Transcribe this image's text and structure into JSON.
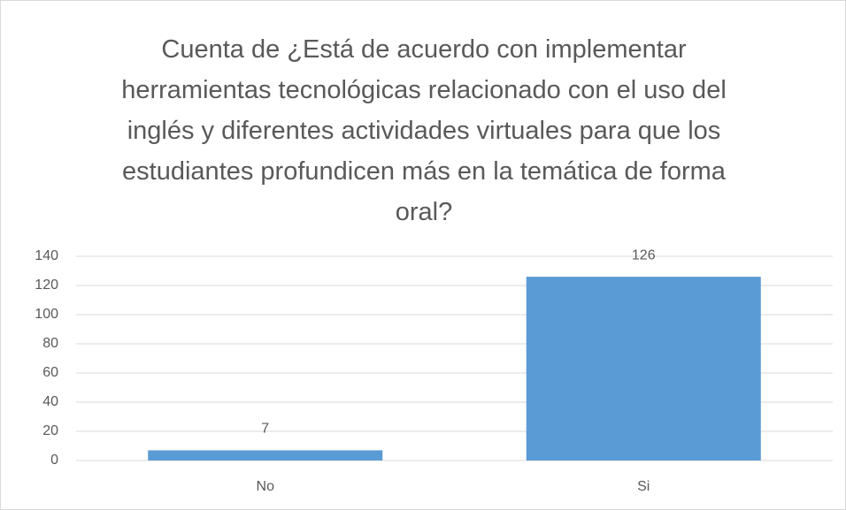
{
  "chart_data": {
    "type": "bar",
    "title": "Cuenta de ¿Está de acuerdo con implementar herramientas tecnológicas relacionado con el uso del inglés y diferentes actividades virtuales para que los estudiantes profundicen más en la temática de forma oral?",
    "categories": [
      "No",
      "Si"
    ],
    "values": [
      7,
      126
    ],
    "color": "#5b9bd5",
    "ylim": [
      0,
      140
    ],
    "yticks": [
      0,
      20,
      40,
      60,
      80,
      100,
      120,
      140
    ],
    "grid": true
  }
}
